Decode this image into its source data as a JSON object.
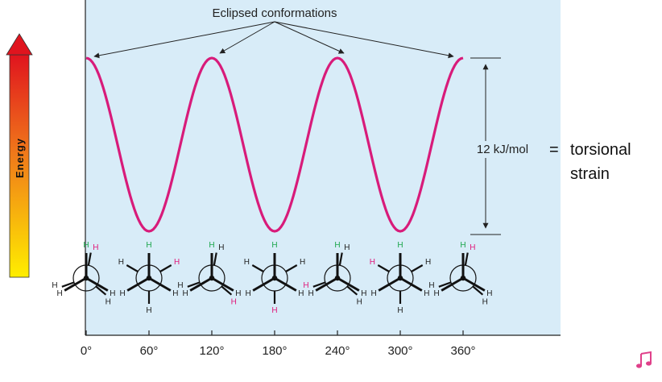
{
  "chart_data": {
    "type": "line",
    "xlabel": "",
    "ylabel": "Energy",
    "x_ticks": [
      "0°",
      "60°",
      "120°",
      "180°",
      "240°",
      "300°",
      "360°"
    ],
    "x_values": [
      0,
      60,
      120,
      180,
      240,
      300,
      360
    ],
    "xlim": [
      0,
      360
    ],
    "barrier_kj_mol": 12,
    "series": [
      {
        "color": "#d81b7a",
        "function": "energy(theta) = 6 * (1 + cos(3*theta)) kJ/mol"
      }
    ],
    "annotations": {
      "eclipsed_label": "Eclipsed conformations",
      "eclipsed_at_degrees": [
        0,
        120,
        240,
        360
      ],
      "barrier_label": "12 kJ/mol"
    },
    "equation": {
      "equals": "=",
      "line1": "torsional",
      "line2": "strain"
    },
    "newman_projections": [
      {
        "angle": 0,
        "eclipsed": true,
        "front": [
          "H",
          "H",
          "H"
        ],
        "back": [
          "H",
          "H",
          "H"
        ],
        "highlight": "back-top"
      },
      {
        "angle": 60,
        "eclipsed": false,
        "front": [
          "H",
          "H",
          "H"
        ],
        "back": [
          "H",
          "H",
          "H"
        ],
        "highlight": "back-upper-right"
      },
      {
        "angle": 120,
        "eclipsed": true,
        "front": [
          "H",
          "H",
          "H"
        ],
        "back": [
          "H",
          "H",
          "H"
        ],
        "highlight": "back-lower-right"
      },
      {
        "angle": 180,
        "eclipsed": false,
        "front": [
          "H",
          "H",
          "H"
        ],
        "back": [
          "H",
          "H",
          "H"
        ],
        "highlight": "back-bottom"
      },
      {
        "angle": 240,
        "eclipsed": true,
        "front": [
          "H",
          "H",
          "H"
        ],
        "back": [
          "H",
          "H",
          "H"
        ],
        "highlight": "back-lower-left"
      },
      {
        "angle": 300,
        "eclipsed": false,
        "front": [
          "H",
          "H",
          "H"
        ],
        "back": [
          "H",
          "H",
          "H"
        ],
        "highlight": "back-upper-left"
      },
      {
        "angle": 360,
        "eclipsed": true,
        "front": [
          "H",
          "H",
          "H"
        ],
        "back": [
          "H",
          "H",
          "H"
        ],
        "highlight": "back-top"
      }
    ],
    "colors": {
      "panel": "#d8ecf8",
      "curve": "#d81b7a",
      "front_h": "#1aa64b",
      "highlight_h": "#e0197a",
      "arrow_top": "#e0141e",
      "arrow_bottom": "#ffee00"
    },
    "grid": false,
    "legend": "none"
  },
  "icons": {
    "corner": "music-note-icon"
  }
}
